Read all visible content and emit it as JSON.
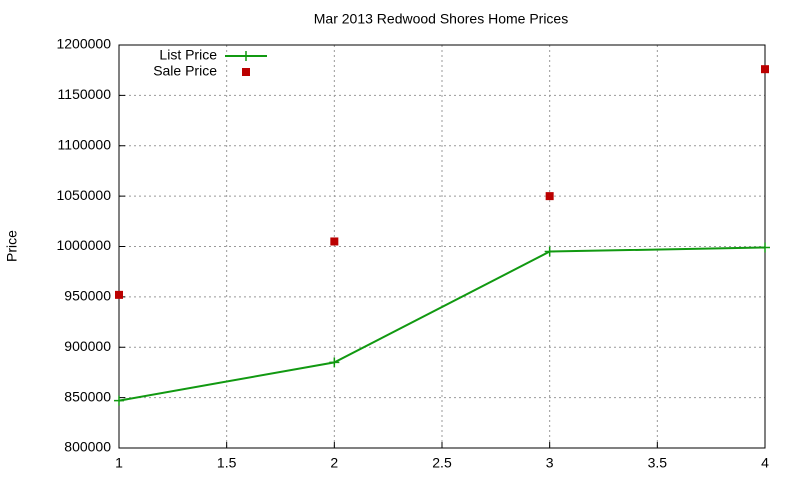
{
  "chart_data": {
    "type": "line",
    "title": "Mar 2013 Redwood Shores Home Prices",
    "y_label": "Price",
    "x": [
      1,
      2,
      3,
      4
    ],
    "series": [
      {
        "name": "List Price",
        "color": "#119911",
        "style": "linespoints",
        "values": [
          847000,
          885000,
          995000,
          999000
        ]
      },
      {
        "name": "Sale Price",
        "color": "#bb0000",
        "style": "points",
        "values": [
          952000,
          1005000,
          1050000,
          1176000
        ]
      }
    ],
    "xlim": [
      1,
      4
    ],
    "xticks": [
      1,
      1.5,
      2,
      2.5,
      3,
      3.5,
      4
    ],
    "ylim": [
      800000,
      1200000
    ],
    "yticks": [
      800000,
      850000,
      900000,
      950000,
      1000000,
      1050000,
      1100000,
      1150000,
      1200000
    ],
    "grid": true,
    "legend": "top-left"
  }
}
